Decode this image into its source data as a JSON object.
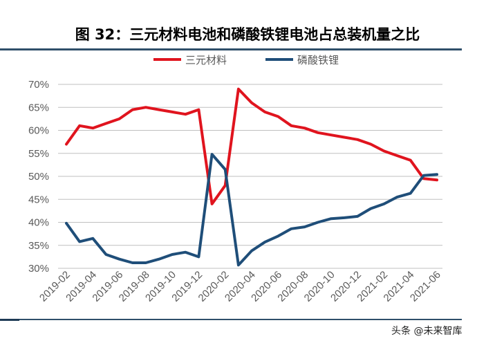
{
  "title": "图 32：三元材料电池和磷酸铁锂电池占总装机量之比",
  "watermark": "头条 @未来智库",
  "colors": {
    "series_1": "#e0141e",
    "series_2": "#1f4e79",
    "grid": "#bfbfbf",
    "rule": "#2f4f6a",
    "tick_text": "#595959"
  },
  "chart_data": {
    "type": "line",
    "title": "",
    "xlabel": "",
    "ylabel": "",
    "ylim": [
      0.3,
      0.7
    ],
    "y_ticks": [
      0.3,
      0.35,
      0.4,
      0.45,
      0.5,
      0.55,
      0.6,
      0.65,
      0.7
    ],
    "y_tick_labels": [
      "30%",
      "35%",
      "40%",
      "45%",
      "50%",
      "55%",
      "60%",
      "65%",
      "70%"
    ],
    "x": [
      "2019-02",
      "2019-03",
      "2019-04",
      "2019-05",
      "2019-06",
      "2019-07",
      "2019-08",
      "2019-09",
      "2019-10",
      "2019-11",
      "2019-12",
      "2020-01",
      "2020-02",
      "2020-03",
      "2020-04",
      "2020-05",
      "2020-06",
      "2020-07",
      "2020-08",
      "2020-09",
      "2020-10",
      "2020-11",
      "2020-12",
      "2021-01",
      "2021-02",
      "2021-03",
      "2021-04",
      "2021-05",
      "2021-06"
    ],
    "x_tick_labels": [
      "2019-02",
      "2019-04",
      "2019-06",
      "2019-08",
      "2019-10",
      "2019-12",
      "2020-02",
      "2020-04",
      "2020-06",
      "2020-08",
      "2020-10",
      "2020-12",
      "2021-02",
      "2021-04",
      "2021-06"
    ],
    "grid": true,
    "legend_position": "top-center",
    "series": [
      {
        "name": "三元材料",
        "color": "#e0141e",
        "values": [
          0.57,
          0.61,
          0.605,
          0.615,
          0.625,
          0.645,
          0.65,
          0.645,
          0.64,
          0.635,
          0.645,
          0.44,
          0.48,
          0.69,
          0.66,
          0.64,
          0.63,
          0.61,
          0.605,
          0.595,
          0.59,
          0.585,
          0.58,
          0.57,
          0.555,
          0.545,
          0.535,
          0.495,
          0.492
        ]
      },
      {
        "name": "磷酸铁锂",
        "color": "#1f4e79",
        "values": [
          0.398,
          0.358,
          0.365,
          0.33,
          0.32,
          0.312,
          0.312,
          0.32,
          0.33,
          0.335,
          0.325,
          0.548,
          0.515,
          0.307,
          0.338,
          0.357,
          0.37,
          0.386,
          0.39,
          0.4,
          0.408,
          0.41,
          0.413,
          0.43,
          0.44,
          0.455,
          0.463,
          0.502,
          0.504
        ]
      }
    ]
  }
}
